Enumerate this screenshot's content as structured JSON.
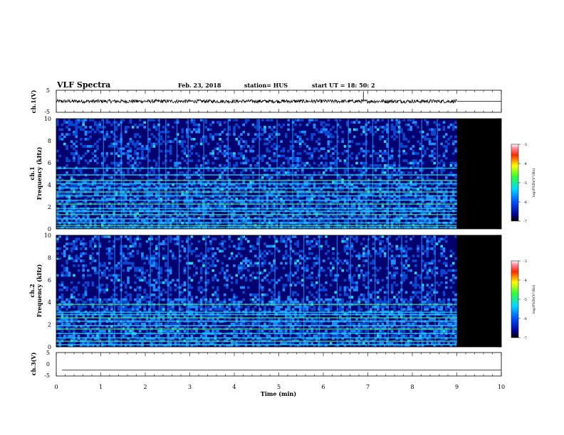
{
  "header": {
    "title": "VLF Spectra",
    "date": "Feb. 23, 2018",
    "station": "station= HUS",
    "start": "start  UT =   18: 50: 2"
  },
  "colors": {
    "background": "#000000",
    "noise_dark": "#00006e",
    "noise_blue": "#0a46d2",
    "noise_light": "#1e8cff",
    "band_cyan": "#28d7e6",
    "band_green": "#46dc78",
    "waveform": "#000000"
  },
  "chart_data": [
    {
      "type": "line",
      "name": "ch1-waveform",
      "ylabel": "ch.1(V)",
      "ylim": [
        -5,
        5
      ],
      "y_ticks": [
        "5",
        "-5"
      ],
      "xlim": [
        0,
        10
      ],
      "data_end_min": 9.0,
      "baseline": 0,
      "amplitude_approx": 0.8,
      "spike": {
        "x": 6.9,
        "y": 4.5
      }
    },
    {
      "type": "heatmap",
      "name": "ch1-spectrogram",
      "ylabel_line1": "ch.1",
      "ylabel_line2": "Frequency (kHz)",
      "xlim": [
        0,
        10
      ],
      "ylim": [
        0,
        10
      ],
      "y_ticks": [
        "0",
        "2",
        "4",
        "6",
        "8",
        "10"
      ],
      "data_end_min": 9.0,
      "horizontal_bands_khz": [
        0.1,
        0.3,
        0.55,
        0.9,
        1.3,
        1.6,
        1.85,
        2.25,
        2.6,
        3.0,
        3.35,
        3.7,
        4.1,
        4.4,
        4.9,
        5.5
      ],
      "vertical_lines_min": [
        1.05,
        1.3,
        1.45,
        2.05,
        2.3,
        2.45,
        2.7,
        2.95,
        3.3,
        3.85,
        4.55,
        4.95,
        5.3,
        6.3,
        6.55,
        6.95,
        7.1,
        7.45,
        7.7,
        8.2,
        8.55
      ],
      "colorbar": {
        "label": "log(PSD)(V²/Hz)",
        "range": [
          -7,
          -3
        ],
        "ticks": [
          "-3",
          "-4",
          "-5",
          "-6",
          "-7"
        ]
      }
    },
    {
      "type": "heatmap",
      "name": "ch2-spectrogram",
      "ylabel_line1": "ch.2",
      "ylabel_line2": "Frequency (kHz)",
      "xlim": [
        0,
        10
      ],
      "ylim": [
        0,
        10
      ],
      "y_ticks": [
        "0",
        "2",
        "4",
        "6",
        "8",
        "10"
      ],
      "data_end_min": 9.0,
      "horizontal_bands_khz": [
        0.2,
        0.5,
        0.8,
        1.2,
        1.6,
        1.9,
        2.3,
        2.6,
        2.9,
        3.1,
        3.8
      ],
      "vertical_lines_min": [
        0.95,
        1.3,
        1.45,
        2.1,
        2.3,
        2.5,
        2.75,
        2.95,
        3.35,
        4.55,
        4.9,
        5.25,
        5.55,
        5.9,
        6.3,
        6.6,
        7.0,
        7.15,
        7.45,
        7.75,
        8.2,
        8.5
      ],
      "colorbar": {
        "label": "log(PSD)(V²/Hz)",
        "range": [
          -7,
          -3
        ],
        "ticks": [
          "-3",
          "-4",
          "-5",
          "-6",
          "-7"
        ]
      }
    },
    {
      "type": "line",
      "name": "ch3-waveform",
      "ylabel": "ch.3(V)",
      "ylim": [
        -5,
        5
      ],
      "y_ticks": [
        "5",
        "0",
        "-5"
      ],
      "xlim": [
        0,
        10
      ],
      "constant_value": -2.5
    }
  ],
  "x_axis": {
    "label": "Time (min)",
    "ticks": [
      "0",
      "1",
      "2",
      "3",
      "4",
      "5",
      "6",
      "7",
      "8",
      "9",
      "10"
    ]
  }
}
